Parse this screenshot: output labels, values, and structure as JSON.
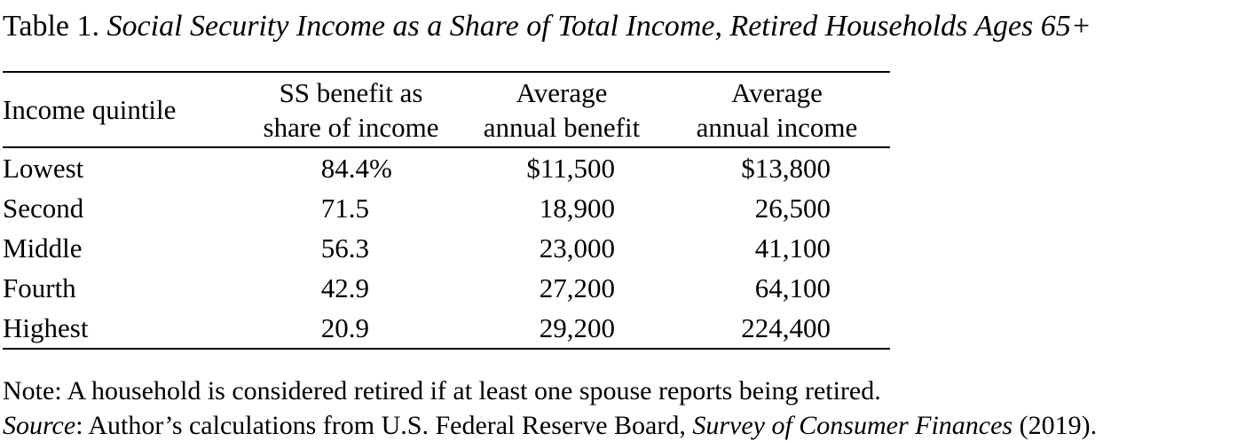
{
  "title": {
    "prefix": "Table 1. ",
    "italic": "Social Security Income as a Share of Total Income, Retired Households Ages 65+"
  },
  "table": {
    "columns": [
      {
        "label_lines": [
          "Income quintile",
          ""
        ]
      },
      {
        "label_lines": [
          "SS benefit as",
          "share of income"
        ]
      },
      {
        "label_lines": [
          "Average",
          "annual benefit"
        ]
      },
      {
        "label_lines": [
          "Average",
          "annual income"
        ]
      }
    ],
    "rows": [
      {
        "quintile": "Lowest",
        "share": "84.4",
        "share_suffix": "%",
        "benefit": "$11,500",
        "income": "$13,800"
      },
      {
        "quintile": "Second",
        "share": "71.5",
        "share_suffix": "",
        "benefit": "18,900",
        "income": "26,500"
      },
      {
        "quintile": "Middle",
        "share": "56.3",
        "share_suffix": "",
        "benefit": "23,000",
        "income": "41,100"
      },
      {
        "quintile": "Fourth",
        "share": "42.9",
        "share_suffix": "",
        "benefit": "27,200",
        "income": "64,100"
      },
      {
        "quintile": "Highest",
        "share": "20.9",
        "share_suffix": "",
        "benefit": "29,200",
        "income": "224,400"
      }
    ]
  },
  "notes": {
    "note": "Note: A household is considered retired if at least one spouse reports being retired.",
    "source_label": "Source",
    "source_mid": ": Author’s calculations from U.S. Federal Reserve Board, ",
    "source_italic": "Survey of Consumer Finances",
    "source_end": " (2019)."
  },
  "chart_data": {
    "type": "table",
    "title": "Table 1. Social Security Income as a Share of Total Income, Retired Households Ages 65+",
    "columns": [
      "Income quintile",
      "SS benefit as share of income",
      "Average annual benefit",
      "Average annual income"
    ],
    "rows": [
      [
        "Lowest",
        "84.4%",
        "$11,500",
        "$13,800"
      ],
      [
        "Second",
        "71.5",
        "18,900",
        "26,500"
      ],
      [
        "Middle",
        "56.3",
        "23,000",
        "41,100"
      ],
      [
        "Fourth",
        "42.9",
        "27,200",
        "64,100"
      ],
      [
        "Highest",
        "20.9",
        "29,200",
        "224,400"
      ]
    ]
  }
}
